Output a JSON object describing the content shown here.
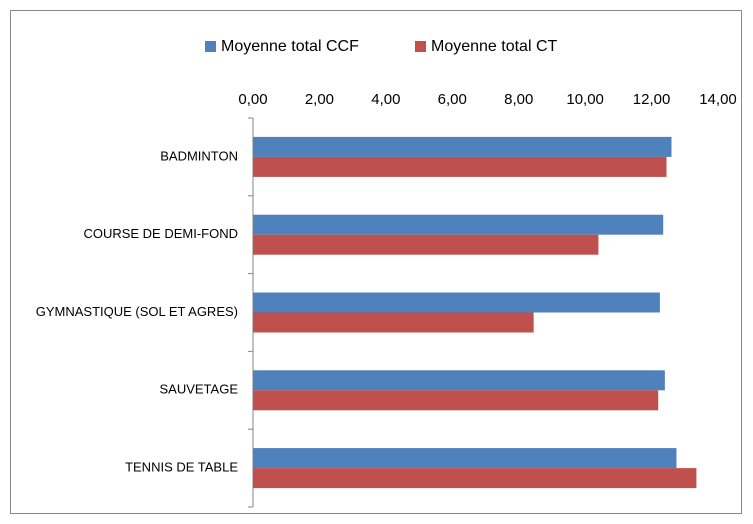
{
  "chart_data": {
    "type": "bar",
    "orientation": "horizontal",
    "categories": [
      "BADMINTON",
      "COURSE DE DEMI-FOND",
      "GYMNASTIQUE (SOL ET AGRES)",
      "SAUVETAGE",
      "TENNIS DE TABLE"
    ],
    "series": [
      {
        "name": "Moyenne total CCF",
        "color": "#4f81bd",
        "values": [
          12.6,
          12.35,
          12.25,
          12.4,
          12.75
        ]
      },
      {
        "name": "Moyenne total CT",
        "color": "#c0504d",
        "values": [
          12.45,
          10.4,
          8.45,
          12.2,
          13.35
        ]
      }
    ],
    "xlim": [
      0,
      14
    ],
    "xticks": [
      {
        "value": 0,
        "label": "0,00"
      },
      {
        "value": 2,
        "label": "2,00"
      },
      {
        "value": 4,
        "label": "4,00"
      },
      {
        "value": 6,
        "label": "6,00"
      },
      {
        "value": 8,
        "label": "8,00"
      },
      {
        "value": 10,
        "label": "10,00"
      },
      {
        "value": 12,
        "label": "12,00"
      },
      {
        "value": 14,
        "label": "14,00"
      }
    ],
    "grid": false,
    "legend": "top"
  }
}
